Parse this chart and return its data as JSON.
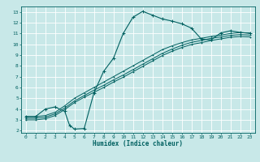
{
  "xlabel": "Humidex (Indice chaleur)",
  "bg_color": "#c8e8e8",
  "line_color": "#006060",
  "grid_color": "#ffffff",
  "xlim": [
    -0.5,
    23.5
  ],
  "ylim": [
    1.8,
    13.5
  ],
  "xticks": [
    0,
    1,
    2,
    3,
    4,
    5,
    6,
    7,
    8,
    9,
    10,
    11,
    12,
    13,
    14,
    15,
    16,
    17,
    18,
    19,
    20,
    21,
    22,
    23
  ],
  "yticks": [
    2,
    3,
    4,
    5,
    6,
    7,
    8,
    9,
    10,
    11,
    12,
    13
  ],
  "curve1_x": [
    0,
    1,
    2,
    3,
    4,
    4.5,
    5,
    6,
    7,
    8,
    9,
    10,
    11,
    12,
    13,
    14,
    15,
    16,
    17,
    18,
    19,
    20,
    21,
    22,
    23
  ],
  "curve1_y": [
    3.3,
    3.3,
    4.0,
    4.2,
    3.8,
    2.5,
    2.15,
    2.2,
    5.5,
    7.5,
    8.7,
    11.0,
    12.5,
    13.05,
    12.7,
    12.35,
    12.15,
    11.9,
    11.5,
    10.5,
    10.4,
    11.05,
    11.25,
    11.1,
    11.0
  ],
  "curve2_x": [
    0,
    1,
    2,
    3,
    4,
    5,
    6,
    7,
    8,
    9,
    10,
    11,
    12,
    13,
    14,
    15,
    16,
    17,
    18,
    19,
    20,
    21,
    22,
    23
  ],
  "curve2_y": [
    3.3,
    3.3,
    3.4,
    3.7,
    4.3,
    5.0,
    5.5,
    6.0,
    6.5,
    7.0,
    7.5,
    8.0,
    8.5,
    9.0,
    9.5,
    9.85,
    10.15,
    10.4,
    10.55,
    10.72,
    10.85,
    11.0,
    11.08,
    11.05
  ],
  "curve3_x": [
    0,
    1,
    2,
    3,
    4,
    5,
    6,
    7,
    8,
    9,
    10,
    11,
    12,
    13,
    14,
    15,
    16,
    17,
    18,
    19,
    20,
    21,
    22,
    23
  ],
  "curve3_y": [
    3.15,
    3.15,
    3.25,
    3.55,
    4.1,
    4.75,
    5.25,
    5.75,
    6.2,
    6.7,
    7.15,
    7.65,
    8.15,
    8.65,
    9.15,
    9.55,
    9.9,
    10.18,
    10.35,
    10.55,
    10.68,
    10.82,
    10.9,
    10.85
  ],
  "curve4_x": [
    0,
    1,
    2,
    3,
    4,
    5,
    6,
    7,
    8,
    9,
    10,
    11,
    12,
    13,
    14,
    15,
    16,
    17,
    18,
    19,
    20,
    21,
    22,
    23
  ],
  "curve4_y": [
    3.0,
    3.0,
    3.1,
    3.4,
    3.95,
    4.6,
    5.1,
    5.55,
    6.0,
    6.5,
    6.95,
    7.45,
    7.95,
    8.45,
    8.95,
    9.35,
    9.7,
    9.98,
    10.15,
    10.35,
    10.5,
    10.65,
    10.72,
    10.68
  ]
}
